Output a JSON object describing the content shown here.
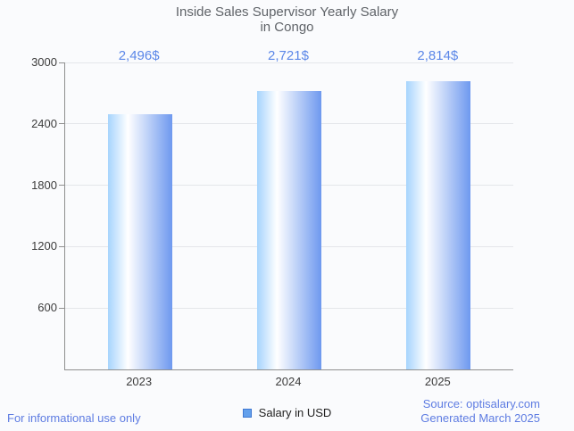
{
  "title": {
    "line1": "Inside Sales Supervisor Yearly Salary",
    "line2": "in Congo"
  },
  "legend": {
    "label": "Salary in USD"
  },
  "footer": {
    "left": "For informational use only",
    "source": "Source: optisalary.com",
    "generated": "Generated March 2025"
  },
  "colors": {
    "background": "#fafbfd",
    "accent_value_label": "#5b87e8",
    "accent_footer": "#5e7ce2",
    "title_text": "#5f6368",
    "axis_text": "#3c3c3c",
    "axis_line": "#8f8f8f",
    "gridline": "#e4e6ea",
    "bar_gradient_left": "#a6d4fd",
    "bar_gradient_mid": "#ffffff",
    "bar_gradient_right": "#6e99ef",
    "legend_swatch_fill": "#63a0ec",
    "legend_swatch_border": "#3f78d2"
  },
  "chart_data": {
    "type": "bar",
    "title": "Inside Sales Supervisor Yearly Salary in Congo",
    "categories": [
      "2023",
      "2024",
      "2025"
    ],
    "values": [
      2496,
      2721,
      2814
    ],
    "value_labels": [
      "2,496$",
      "2,721$",
      "2,814$"
    ],
    "xlabel": "",
    "ylabel": "",
    "ylim": [
      0,
      3000
    ],
    "yticks": [
      600,
      1200,
      1800,
      2400,
      3000
    ],
    "grid": true,
    "legend_entries": [
      "Salary in USD"
    ],
    "legend_position": "bottom"
  }
}
